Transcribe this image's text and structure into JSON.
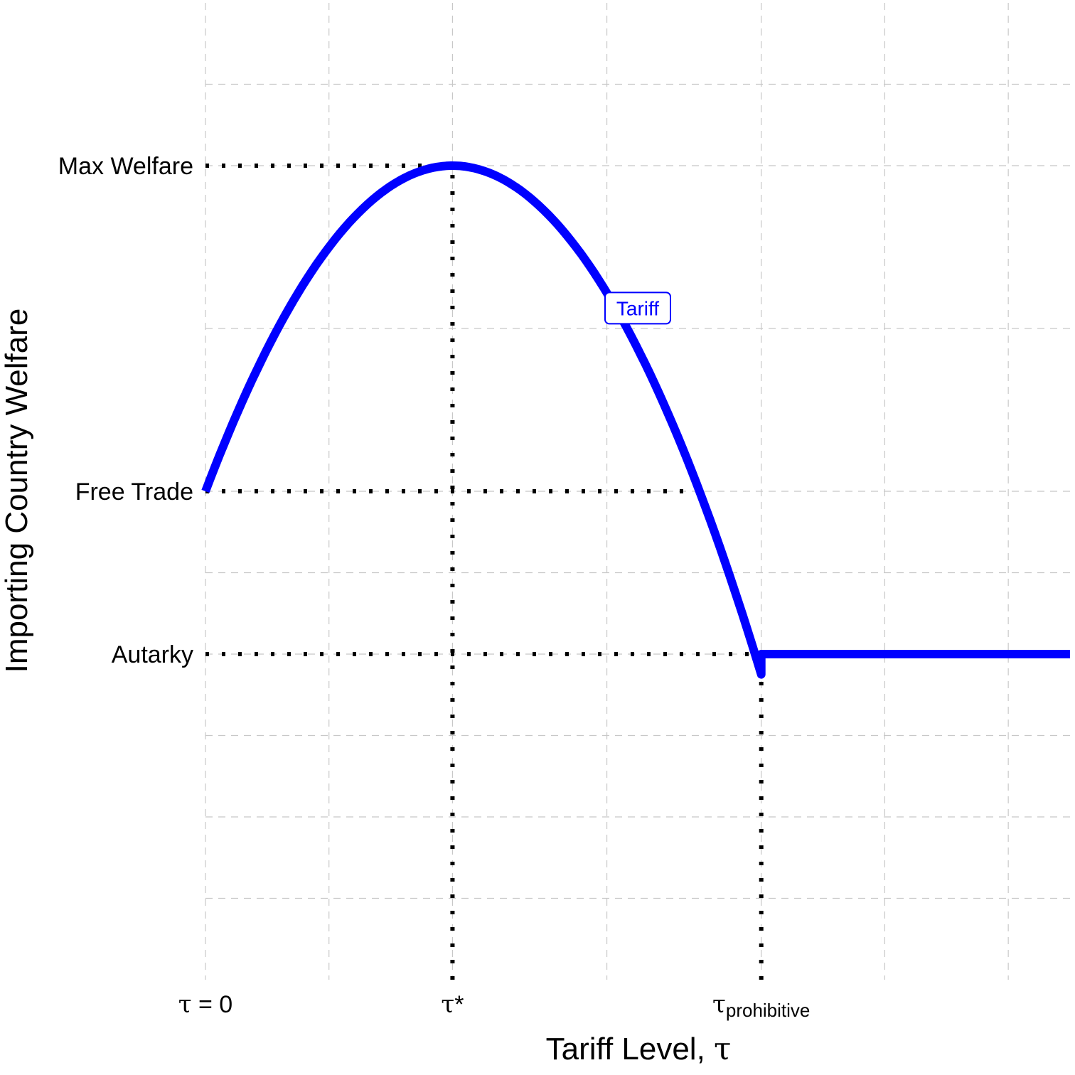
{
  "chart_data": {
    "type": "line",
    "title": "",
    "xlabel": "Tariff Level, τ",
    "xlabel_parts": {
      "text": "Tariff Level, ",
      "symbol": "τ"
    },
    "ylabel": "Importing Country Welfare",
    "xlim": [
      0,
      7
    ],
    "ylim": [
      0,
      10
    ],
    "grid": true,
    "x_ticks": [
      {
        "x": 0,
        "label": "τ = 0",
        "symbol": "τ",
        "text": " = 0",
        "sub": ""
      },
      {
        "x": 2,
        "label": "τ*",
        "symbol": "τ",
        "text": "*",
        "sub": ""
      },
      {
        "x": 4.5,
        "label": "τprohibitive",
        "symbol": "τ",
        "text": "",
        "sub": "prohibitive"
      }
    ],
    "y_ticks": [
      {
        "y": 10,
        "label": "Max Welfare"
      },
      {
        "y": 6,
        "label": "Free Trade"
      },
      {
        "y": 4,
        "label": "Autarky"
      }
    ],
    "x_grid": [
      0,
      1,
      2,
      3.25,
      4.5,
      5.5,
      6.5
    ],
    "y_grid": [
      1,
      2,
      3,
      4,
      5,
      6,
      8,
      10,
      11
    ],
    "series": [
      {
        "name": "Tariff",
        "color": "#0000ff",
        "segments": [
          {
            "kind": "parabola",
            "x_from": 0,
            "x_to": 4.5,
            "vertex_x": 2,
            "vertex_y": 10,
            "y_at_0": 6
          },
          {
            "kind": "flat",
            "x_from": 4.5,
            "x_to": 7,
            "y": 4
          }
        ]
      }
    ],
    "reference_lines": [
      {
        "axis": "h",
        "y": 10,
        "x_from": 0,
        "x_to": 2
      },
      {
        "axis": "h",
        "y": 6,
        "x_from": 0,
        "x_to": 4.0
      },
      {
        "axis": "h",
        "y": 4,
        "x_from": 0,
        "x_to": 4.5
      },
      {
        "axis": "v",
        "x": 2,
        "y_from": 0,
        "y_to": 10
      },
      {
        "axis": "v",
        "x": 4.5,
        "y_from": 0,
        "y_to": 4
      }
    ],
    "annotations": [
      {
        "text": "Tariff",
        "x": 3.5,
        "y": 8.25,
        "color": "#0000ff"
      }
    ]
  }
}
